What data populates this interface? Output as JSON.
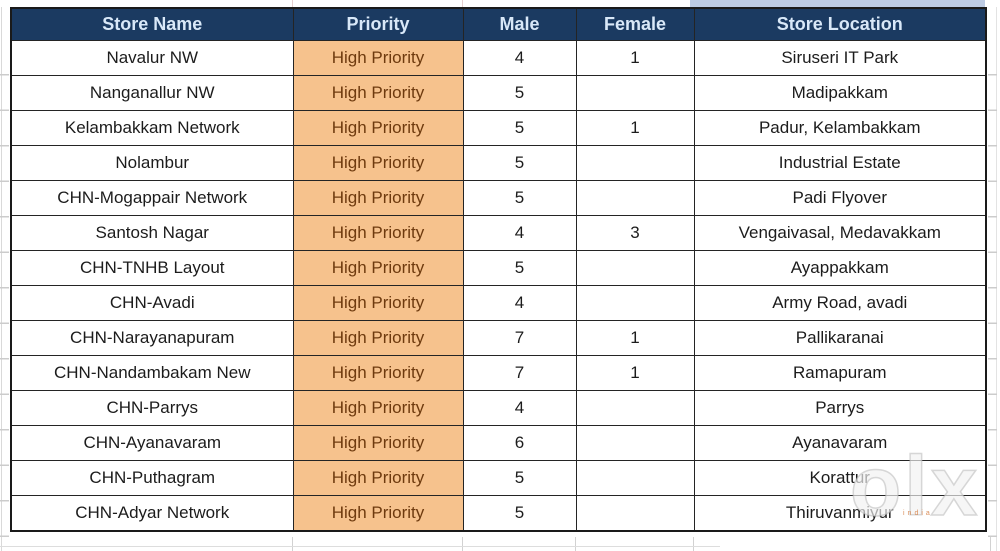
{
  "table": {
    "headers": [
      "Store Name",
      "Priority",
      "Male",
      "Female",
      "Store Location"
    ],
    "rows": [
      {
        "store": "Navalur NW",
        "priority": "High Priority",
        "male": "4",
        "female": "1",
        "location": "Siruseri IT Park"
      },
      {
        "store": "Nanganallur NW",
        "priority": "High Priority",
        "male": "5",
        "female": "",
        "location": "Madipakkam"
      },
      {
        "store": "Kelambakkam Network",
        "priority": "High Priority",
        "male": "5",
        "female": "1",
        "location": "Padur, Kelambakkam"
      },
      {
        "store": "Nolambur",
        "priority": "High Priority",
        "male": "5",
        "female": "",
        "location": "Industrial Estate"
      },
      {
        "store": "CHN-Mogappair Network",
        "priority": "High Priority",
        "male": "5",
        "female": "",
        "location": "Padi Flyover"
      },
      {
        "store": "Santosh Nagar",
        "priority": "High Priority",
        "male": "4",
        "female": "3",
        "location": "Vengaivasal, Medavakkam"
      },
      {
        "store": "CHN-TNHB Layout",
        "priority": "High Priority",
        "male": "5",
        "female": "",
        "location": "Ayappakkam"
      },
      {
        "store": "CHN-Avadi",
        "priority": "High Priority",
        "male": "4",
        "female": "",
        "location": "Army Road, avadi"
      },
      {
        "store": "CHN-Narayanapuram",
        "priority": "High Priority",
        "male": "7",
        "female": "1",
        "location": "Pallikaranai"
      },
      {
        "store": "CHN-Nandambakam New",
        "priority": "High Priority",
        "male": "7",
        "female": "1",
        "location": "Ramapuram"
      },
      {
        "store": "CHN-Parrys",
        "priority": "High Priority",
        "male": "4",
        "female": "",
        "location": "Parrys"
      },
      {
        "store": "CHN-Ayanavaram",
        "priority": "High Priority",
        "male": "6",
        "female": "",
        "location": "Ayanavaram"
      },
      {
        "store": "CHN-Puthagram",
        "priority": "High Priority",
        "male": "5",
        "female": "",
        "location": "Korattur"
      },
      {
        "store": "CHN-Adyar Network",
        "priority": "High Priority",
        "male": "5",
        "female": "",
        "location": "Thiruvanmiyur"
      }
    ]
  },
  "watermark": {
    "brand": "olx",
    "region": "india"
  },
  "colors": {
    "header_bg": "#1b3a61",
    "header_text": "#d9e8f8",
    "priority_bg": "#f6c28d",
    "priority_text": "#6e3a0e",
    "grid_line": "#242424",
    "cell_text": "#1c1c1c",
    "top_strip_highlight": "#bdcbe3"
  }
}
